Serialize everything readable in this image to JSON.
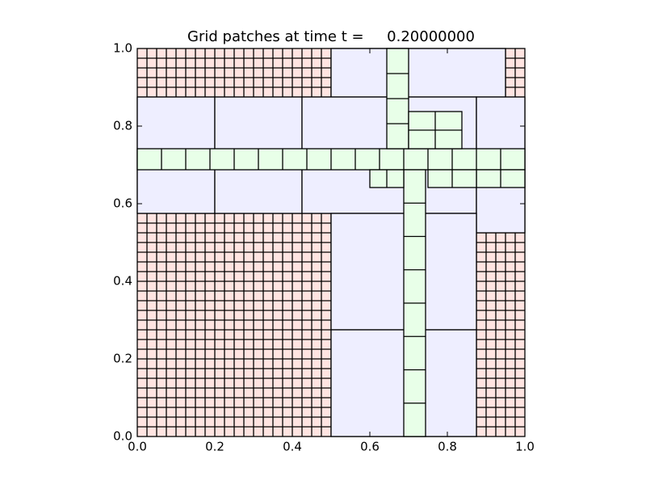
{
  "chart_data": {
    "type": "patches",
    "title": "Grid patches at time t =     0.20000000",
    "xlim": [
      0,
      1
    ],
    "ylim": [
      0,
      1
    ],
    "xticks": [
      {
        "value": 0,
        "label": "0.0"
      },
      0.2,
      0.4,
      0.6,
      0.8,
      {
        "value": 1,
        "label": "1.0"
      }
    ],
    "yticks": [
      {
        "value": 0,
        "label": "0.0"
      },
      0.2,
      0.4,
      0.6,
      0.8,
      {
        "value": 1,
        "label": "1.0"
      }
    ],
    "levels": [
      {
        "color": "#ffe4e1"
      },
      {
        "color": "#eeeeff"
      },
      {
        "color": "#e8ffe8"
      }
    ],
    "patches": [
      {
        "level": 0,
        "x": [
          0,
          1
        ],
        "y": [
          0,
          1
        ],
        "cells": [
          40,
          40
        ]
      },
      {
        "level": 1,
        "x": [
          0.5,
          0.95
        ],
        "y": [
          0.875,
          1.0
        ],
        "cells": [
          1,
          1
        ]
      },
      {
        "level": 1,
        "x": [
          0.0,
          0.2
        ],
        "y": [
          0.575,
          0.875
        ],
        "cells": [
          1,
          1
        ]
      },
      {
        "level": 1,
        "x": [
          0.2,
          0.425
        ],
        "y": [
          0.575,
          0.875
        ],
        "cells": [
          1,
          1
        ]
      },
      {
        "level": 1,
        "x": [
          0.425,
          0.875
        ],
        "y": [
          0.575,
          0.875
        ],
        "cells": [
          1,
          1
        ]
      },
      {
        "level": 1,
        "x": [
          0.875,
          1.0
        ],
        "y": [
          0.525,
          0.875
        ],
        "cells": [
          1,
          1
        ]
      },
      {
        "level": 1,
        "x": [
          0.5,
          0.875
        ],
        "y": [
          0.275,
          0.575
        ],
        "cells": [
          1,
          1
        ]
      },
      {
        "level": 1,
        "x": [
          0.5,
          0.875
        ],
        "y": [
          0.0,
          0.275
        ],
        "cells": [
          1,
          1
        ]
      },
      {
        "level": 2,
        "x": [
          0.0,
          1.0
        ],
        "y": [
          0.6875,
          0.7417
        ],
        "cells": [
          16,
          1
        ]
      },
      {
        "level": 2,
        "x": [
          0.6875,
          0.74375
        ],
        "y": [
          0.0,
          0.6875
        ],
        "cells": [
          1,
          8
        ]
      },
      {
        "level": 2,
        "x": [
          0.64375,
          0.7
        ],
        "y": [
          0.7417,
          1.0
        ],
        "cells": [
          1,
          4
        ]
      },
      {
        "level": 2,
        "x": [
          0.7,
          0.8375
        ],
        "y": [
          0.7417,
          0.8375
        ],
        "cells": [
          2,
          2
        ]
      },
      {
        "level": 2,
        "x": [
          0.875,
          1.0
        ],
        "y": [
          0.6417,
          0.6875
        ],
        "cells": [
          2,
          1
        ]
      },
      {
        "level": 2,
        "x": [
          0.75,
          0.875
        ],
        "y": [
          0.6417,
          0.6875
        ],
        "cells": [
          2,
          1
        ]
      },
      {
        "level": 2,
        "x": [
          0.6,
          0.6875
        ],
        "y": [
          0.6417,
          0.6875
        ],
        "cells": [
          2,
          1
        ]
      }
    ]
  }
}
